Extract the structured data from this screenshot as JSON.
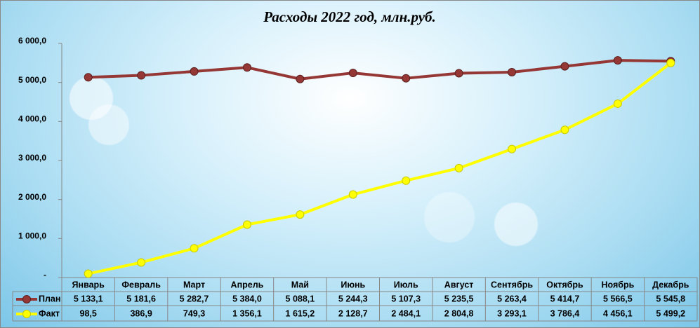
{
  "chart_data": {
    "type": "line",
    "title": "Расходы 2022 год, млн.руб.",
    "categories": [
      "Январь",
      "Февраль",
      "Март",
      "Апрель",
      "Май",
      "Июнь",
      "Июль",
      "Август",
      "Сентябрь",
      "Октябрь",
      "Ноябрь",
      "Декабрь"
    ],
    "series": [
      {
        "name": "План",
        "color": "#953735",
        "values": [
          5133.1,
          5181.6,
          5282.7,
          5384.0,
          5088.1,
          5244.3,
          5107.3,
          5235.5,
          5263.4,
          5414.7,
          5566.5,
          5545.8
        ],
        "value_labels": [
          "5 133,1",
          "5 181,6",
          "5 282,7",
          "5 384,0",
          "5 088,1",
          "5 244,3",
          "5 107,3",
          "5 235,5",
          "5 263,4",
          "5 414,7",
          "5 566,5",
          "5 545,8"
        ]
      },
      {
        "name": "Факт",
        "color": "#ffff00",
        "values": [
          98.5,
          386.9,
          749.3,
          1356.1,
          1615.2,
          2128.7,
          2484.1,
          2804.8,
          3293.1,
          3786.4,
          4456.1,
          5499.2
        ],
        "value_labels": [
          "98,5",
          "386,9",
          "749,3",
          "1 356,1",
          "1 615,2",
          "2 128,7",
          "2 484,1",
          "2 804,8",
          "3 293,1",
          "3 786,4",
          "4 456,1",
          "5 499,2"
        ]
      }
    ],
    "ylim": [
      0,
      6000
    ],
    "yticks": [
      {
        "value": 0,
        "label": "-"
      },
      {
        "value": 1000,
        "label": "1 000,0"
      },
      {
        "value": 2000,
        "label": "2 000,0"
      },
      {
        "value": 3000,
        "label": "3 000,0"
      },
      {
        "value": 4000,
        "label": "4 000,0"
      },
      {
        "value": 5000,
        "label": "5 000,0"
      },
      {
        "value": 6000,
        "label": "6 000,0"
      }
    ]
  }
}
